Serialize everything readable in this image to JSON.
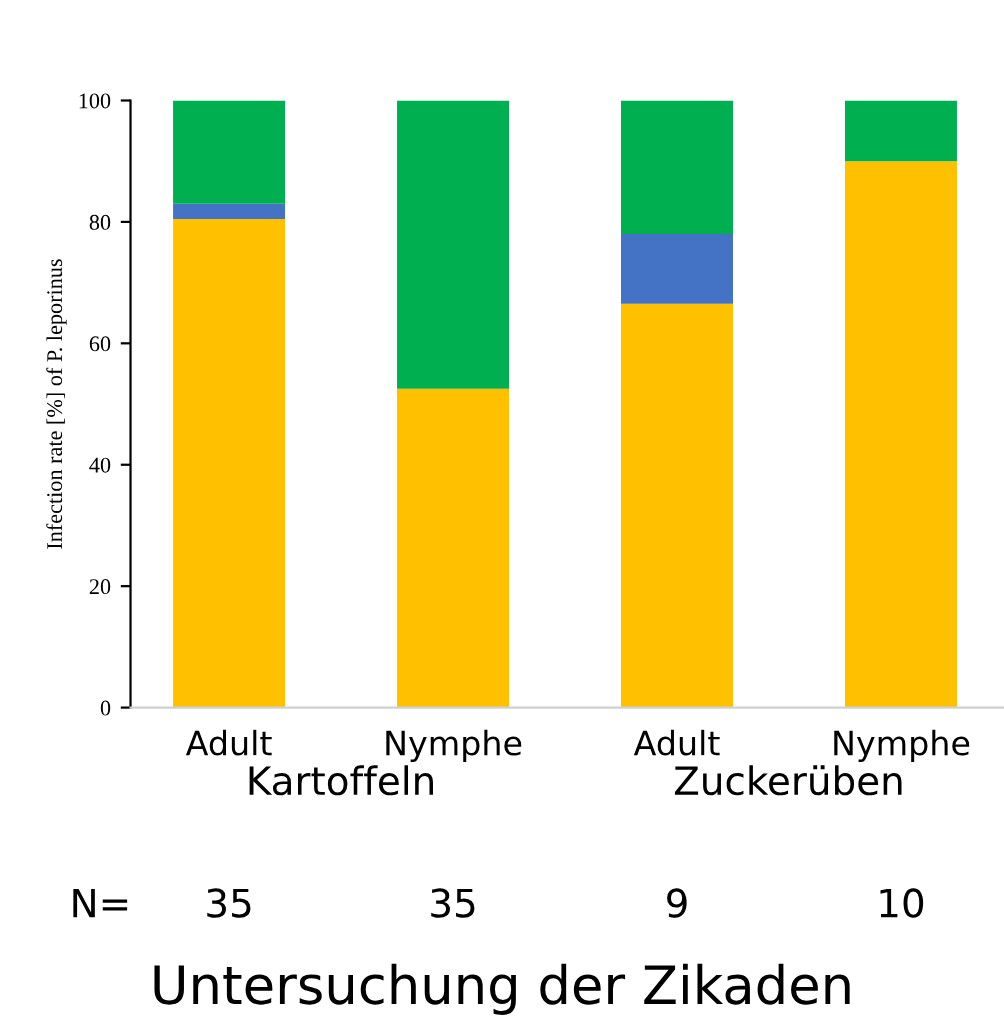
{
  "chart_data": {
    "type": "bar",
    "stacked": true,
    "title": "Untersuchung der Zikaden",
    "ylabel": "Infection rate [%] of P. leporinus",
    "categories": [
      "Adult",
      "Nymphe",
      "Adult",
      "Nymphe"
    ],
    "series": [
      {
        "color": "#ffc000",
        "values": [
          80.5,
          52.5,
          66.5,
          90
        ]
      },
      {
        "color": "#4472c4",
        "values": [
          2.5,
          0,
          11.5,
          0
        ]
      },
      {
        "color": "#00b050",
        "values": [
          17,
          47.5,
          22,
          10
        ]
      }
    ],
    "ylim": [
      0,
      100
    ],
    "yticks": [
      0,
      20,
      40,
      60,
      80,
      100
    ],
    "grid": false,
    "legend": false,
    "annotations": [
      "Kartoffeln",
      "Zuckerüben",
      "N=",
      "35",
      "35",
      "9",
      "10"
    ]
  }
}
